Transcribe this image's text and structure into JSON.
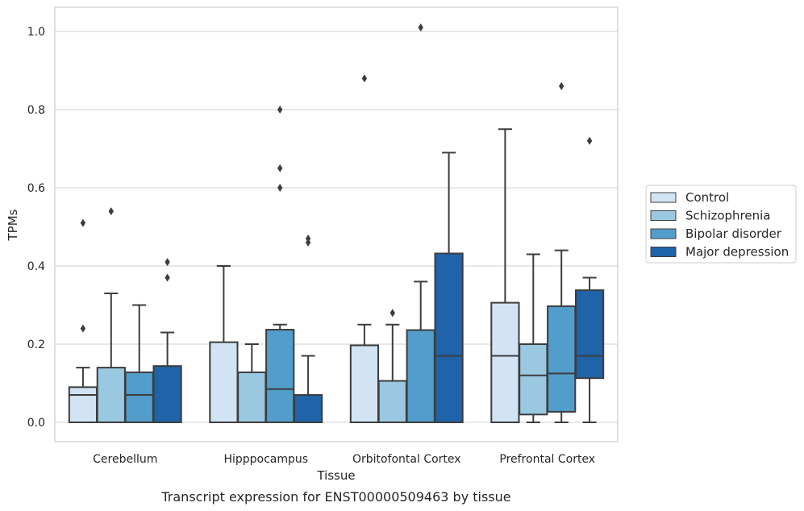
{
  "chart_data": {
    "type": "box",
    "caption": "Transcript expression for ENST00000509463 by tissue",
    "xlabel": "Tissue",
    "ylabel": "TPMs",
    "ylim": [
      -0.05,
      1.06
    ],
    "yticks": [
      0.0,
      0.2,
      0.4,
      0.6,
      0.8,
      1.0
    ],
    "ytick_labels": [
      "0.0",
      "0.2",
      "0.4",
      "0.6",
      "0.8",
      "1.0"
    ],
    "grid": "horizontal",
    "legend_position": "right",
    "categories": [
      "Cerebellum",
      "Hipppocampus",
      "Orbitofontal Cortex",
      "Prefrontal Cortex"
    ],
    "colors": {
      "Control": "#d2e3f3",
      "Schizophrenia": "#9ac8e0",
      "Bipolar disorder": "#529dcc",
      "Major depression": "#1f63a8",
      "box_edge": "#3d3d3d",
      "grid": "#d9d9d9",
      "frame": "#cccccc"
    },
    "series": [
      {
        "name": "Control",
        "boxes": [
          {
            "whislo": 0.0,
            "q1": 0.0,
            "med": 0.07,
            "q3": 0.09,
            "whishi": 0.14,
            "fliers": [
              0.24,
              0.51
            ]
          },
          {
            "whislo": 0.0,
            "q1": 0.0,
            "med": 0.0,
            "q3": 0.205,
            "whishi": 0.4,
            "fliers": []
          },
          {
            "whislo": 0.0,
            "q1": 0.0,
            "med": 0.0,
            "q3": 0.197,
            "whishi": 0.25,
            "fliers": [
              0.88
            ]
          },
          {
            "whislo": 0.0,
            "q1": 0.0,
            "med": 0.17,
            "q3": 0.306,
            "whishi": 0.75,
            "fliers": []
          }
        ]
      },
      {
        "name": "Schizophrenia",
        "boxes": [
          {
            "whislo": 0.0,
            "q1": 0.0,
            "med": 0.0,
            "q3": 0.14,
            "whishi": 0.33,
            "fliers": [
              0.54
            ]
          },
          {
            "whislo": 0.0,
            "q1": 0.0,
            "med": 0.0,
            "q3": 0.128,
            "whishi": 0.2,
            "fliers": []
          },
          {
            "whislo": 0.0,
            "q1": 0.0,
            "med": 0.0,
            "q3": 0.106,
            "whishi": 0.25,
            "fliers": [
              0.28
            ]
          },
          {
            "whislo": 0.0,
            "q1": 0.02,
            "med": 0.12,
            "q3": 0.2,
            "whishi": 0.43,
            "fliers": []
          }
        ]
      },
      {
        "name": "Bipolar disorder",
        "boxes": [
          {
            "whislo": 0.0,
            "q1": 0.0,
            "med": 0.07,
            "q3": 0.128,
            "whishi": 0.3,
            "fliers": []
          },
          {
            "whislo": 0.0,
            "q1": 0.0,
            "med": 0.085,
            "q3": 0.237,
            "whishi": 0.25,
            "fliers": [
              0.6,
              0.65,
              0.8
            ]
          },
          {
            "whislo": 0.0,
            "q1": 0.0,
            "med": 0.0,
            "q3": 0.236,
            "whishi": 0.36,
            "fliers": [
              1.01
            ]
          },
          {
            "whislo": 0.0,
            "q1": 0.027,
            "med": 0.125,
            "q3": 0.297,
            "whishi": 0.44,
            "fliers": [
              0.86
            ]
          }
        ]
      },
      {
        "name": "Major depression",
        "boxes": [
          {
            "whislo": 0.0,
            "q1": 0.0,
            "med": 0.0,
            "q3": 0.144,
            "whishi": 0.23,
            "fliers": [
              0.37,
              0.41
            ]
          },
          {
            "whislo": 0.0,
            "q1": 0.0,
            "med": 0.0,
            "q3": 0.07,
            "whishi": 0.17,
            "fliers": [
              0.46,
              0.47
            ]
          },
          {
            "whislo": 0.0,
            "q1": 0.0,
            "med": 0.17,
            "q3": 0.432,
            "whishi": 0.69,
            "fliers": []
          },
          {
            "whislo": 0.0,
            "q1": 0.113,
            "med": 0.17,
            "q3": 0.338,
            "whishi": 0.37,
            "fliers": [
              0.72
            ]
          }
        ]
      }
    ]
  }
}
